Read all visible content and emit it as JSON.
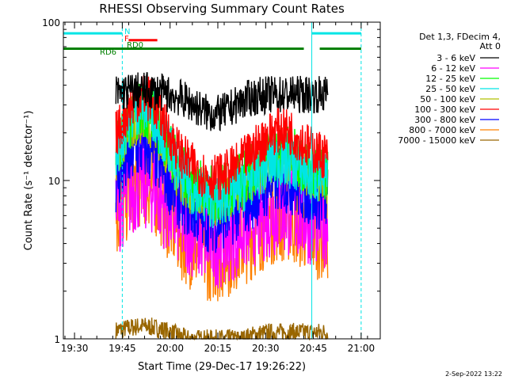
{
  "chart_data": {
    "type": "line",
    "title": "RHESSI Observing Summary Count Rates",
    "xlabel": "Start Time (29-Dec-17 19:26:22)",
    "ylabel": "Count Rate (s⁻¹ detector⁻¹)",
    "y_scale": "log",
    "ylim": [
      1,
      100
    ],
    "xlim_minutes": [
      -3.5,
      96
    ],
    "x_ticks": [
      {
        "label": "19:30",
        "minute": 0
      },
      {
        "label": "19:45",
        "minute": 15
      },
      {
        "label": "20:00",
        "minute": 30
      },
      {
        "label": "20:15",
        "minute": 45
      },
      {
        "label": "20:30",
        "minute": 60
      },
      {
        "label": "20:45",
        "minute": 75
      },
      {
        "label": "21:00",
        "minute": 90
      }
    ],
    "y_ticks": [
      {
        "label": "1",
        "value": 1
      },
      {
        "label": "10",
        "value": 10
      },
      {
        "label": "100",
        "value": 100
      }
    ],
    "legend_header": [
      "Det 1,3, FDecim 4,",
      "Att 0"
    ],
    "legend_position": "right",
    "data_interval_minutes": [
      13,
      79.5
    ],
    "series": [
      {
        "name": "3 - 6 keV",
        "color": "#000000",
        "base": 35,
        "peak1": 37,
        "peak2": 35,
        "noise": 0.04
      },
      {
        "name": "6 - 12 keV",
        "color": "#ff00ff",
        "base": 5.5,
        "peak1": 9.5,
        "peak2": 6.5,
        "noise": 0.1
      },
      {
        "name": "12 - 25 keV",
        "color": "#00ff00",
        "base": 11,
        "peak1": 28,
        "peak2": 15,
        "noise": 0.06
      },
      {
        "name": "25 - 50 keV",
        "color": "#00e5e5",
        "base": 10,
        "peak1": 30,
        "peak2": 13.5,
        "noise": 0.06
      },
      {
        "name": "50 - 100 keV",
        "color": "#b0c000",
        "base": 9.5,
        "peak1": 24,
        "peak2": 14,
        "noise": 0.05
      },
      {
        "name": "100 - 300 keV",
        "color": "#ff0000",
        "base": 14,
        "peak1": 34,
        "peak2": 21,
        "noise": 0.05
      },
      {
        "name": "300 - 800 keV",
        "color": "#0000ff",
        "base": 7.5,
        "peak1": 16,
        "peak2": 10,
        "noise": 0.07
      },
      {
        "name": "800 - 7000 keV",
        "color": "#ff8000",
        "base": 4.5,
        "peak1": 10,
        "peak2": 6,
        "noise": 0.1
      },
      {
        "name": "7000 - 15000 keV",
        "color": "#996600",
        "base": 1.1,
        "peak1": 1.2,
        "peak2": 1.1,
        "noise": 0.02
      }
    ],
    "peak1_minute": 21.5,
    "peak2_minute": 65,
    "status_bars": [
      {
        "label": "N",
        "color": "#00e5e5",
        "segments": [
          [
            -3.5,
            15
          ],
          [
            74.5,
            90
          ]
        ],
        "level": 85
      },
      {
        "label": "F",
        "color": "#ff0000",
        "segments": [
          [
            17,
            26
          ]
        ],
        "level": 77
      },
      {
        "label": "RD0",
        "color": "#008000",
        "segments": [
          [
            -3.5,
            72
          ],
          [
            77,
            90
          ]
        ],
        "level": 68
      },
      {
        "label": "RD6",
        "color": "#008000",
        "segments": [],
        "level": 68
      }
    ],
    "vertical_markers": [
      {
        "minute": -3.5,
        "color": "#00e5e5",
        "style": "solid"
      },
      {
        "minute": 15,
        "color": "#00e5e5",
        "style": "dashed"
      },
      {
        "minute": 74.5,
        "color": "#00e5e5",
        "style": "solid"
      },
      {
        "minute": 90,
        "color": "#00e5e5",
        "style": "dashed"
      }
    ]
  },
  "footer": {
    "date_stamp": "2-Sep-2022 13:22"
  }
}
